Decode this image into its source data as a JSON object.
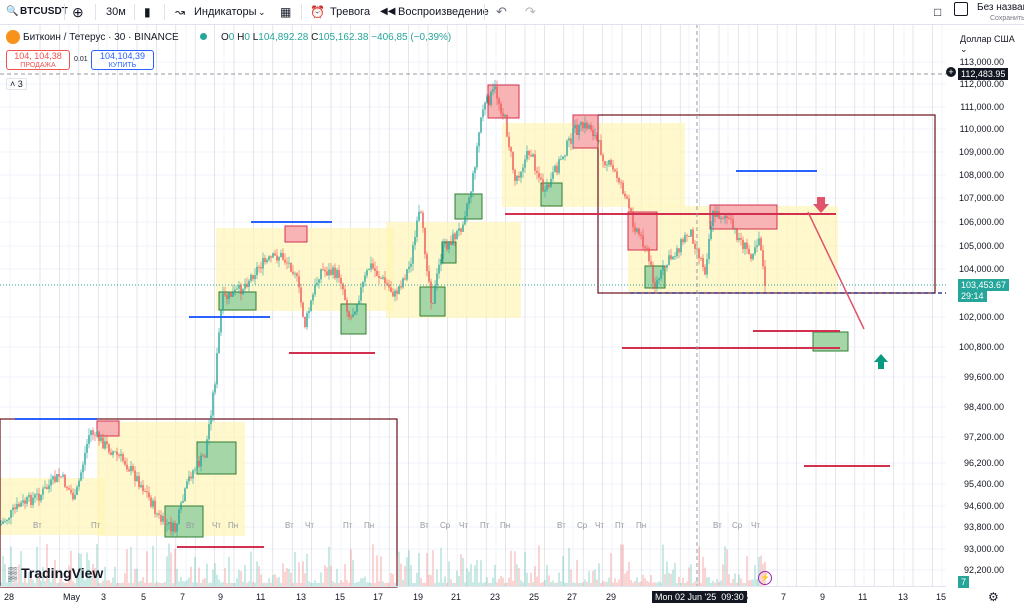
{
  "toolbar": {
    "symbol": "BTCUSDT",
    "interval": "30м",
    "indicators": "Индикаторы",
    "alert": "Тревога",
    "replay": "Воспроизведение",
    "layout_title": "Без назван",
    "layout_saved": "Сохранить"
  },
  "legend": {
    "title": "Биткоин / Тетерус · 30 · BINANCE",
    "o_label": "O",
    "o_value": "0",
    "h_label": "H",
    "h_value": "0",
    "l_label": "L",
    "l_value": "104,892.28",
    "c_label": "C",
    "c_value": "105,162.38",
    "change": "−406,85 (−0,39%)",
    "sell_price": "104, 104,38",
    "sell_label": "ПРОДАЖА",
    "spread": "0.01",
    "buy_price": "104,104,39",
    "buy_label": "КУПИТЬ",
    "indicator_count": "3"
  },
  "currency": "Доллар США",
  "price_axis": {
    "labels": [
      "113,000.00",
      "112,000.00",
      "111,000.00",
      "110,000.00",
      "109,000.00",
      "108,000.00",
      "107,000.00",
      "106,000.00",
      "105,000.00",
      "104,000.00",
      "102,000.00",
      "100,800.00",
      "99,600.00",
      "98,400.00",
      "97,200.00",
      "96,200.00",
      "95,400.00",
      "94,600.00",
      "93,800.00",
      "93,000.00",
      "92,200.00"
    ],
    "crosshair_price": "112,483.95",
    "last_price": "103,453.67",
    "countdown": "29:14",
    "bottom_badge": "7"
  },
  "time_axis": {
    "labels": [
      "28",
      "May",
      "3",
      "5",
      "7",
      "9",
      "11",
      "13",
      "15",
      "17",
      "19",
      "21",
      "23",
      "25",
      "27",
      "29",
      "",
      "",
      "",
      "5",
      "7",
      "9",
      "11",
      "13",
      "15"
    ],
    "crosshair_time": "Mon 02 Jun '25",
    "crosshair_clock": "09:30"
  },
  "weekday_labels": [
    "Вт",
    "Пт",
    "Вт",
    "Чт",
    "Пн",
    "Вт",
    "Чт",
    "Пт",
    "Пн",
    "Вт",
    "Ср",
    "Чт",
    "Пт",
    "Пн",
    "Вт",
    "Ср",
    "Чт",
    "Пт",
    "Пн",
    "Вт",
    "Ср",
    "Чт"
  ],
  "logo": "TradingView",
  "colors": {
    "up": "#26a69a",
    "down": "#ef5350",
    "zone_yellow": "#fff5b8",
    "zone_green": "#a5d6a7",
    "zone_red": "#f8b4b4",
    "support_red": "#d32f4f",
    "resistance_blue": "#2962ff",
    "range_box": "#6b0f1a",
    "arrow_up": "#089981",
    "arrow_down": "#e0556b"
  }
}
